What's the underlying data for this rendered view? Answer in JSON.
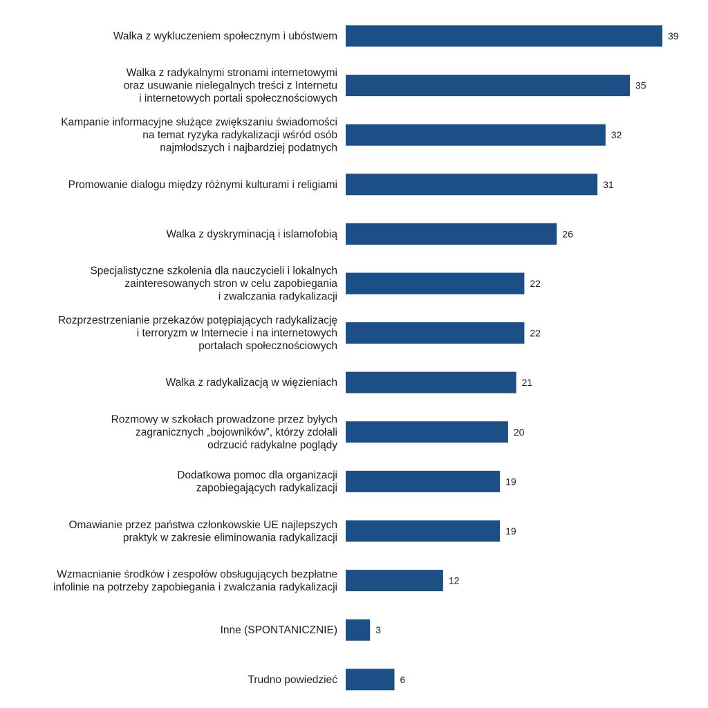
{
  "chart_data": {
    "type": "bar",
    "orientation": "horizontal",
    "bar_color": "#1c4f85",
    "xlim": [
      0,
      39
    ],
    "grid": false,
    "legend": "none",
    "title": "",
    "xlabel": "",
    "ylabel": "",
    "categories": [
      [
        "Walka z wykluczeniem społecznym i ubóstwem"
      ],
      [
        "Walka z radykalnymi stronami internetowymi",
        "oraz usuwanie nielegalnych treści z Internetu",
        "i internetowych portali społecznościowych"
      ],
      [
        "Kampanie informacyjne służące zwiększaniu świadomości",
        "na temat ryzyka radykalizacji wśród osób",
        "najmłodszych i najbardziej podatnych"
      ],
      [
        "Promowanie dialogu między różnymi kulturami i religiami"
      ],
      [
        "Walka z dyskryminacją i islamofobią"
      ],
      [
        "Specjalistyczne szkolenia dla nauczycieli i lokalnych",
        "zainteresowanych stron w celu zapobiegania",
        "i zwalczania radykalizacji"
      ],
      [
        "Rozprzestrzenianie przekazów potępiających radykalizację",
        "i terroryzm w Internecie i na internetowych",
        "portalach społecznościowych"
      ],
      [
        "Walka z radykalizacją w więzieniach"
      ],
      [
        "Rozmowy w szkołach prowadzone przez byłych",
        "zagranicznych „bojowników”, którzy zdołali",
        "odrzucić radykalne poglądy"
      ],
      [
        "Dodatkowa pomoc dla organizacji",
        "zapobiegających radykalizacji"
      ],
      [
        "Omawianie przez państwa członkowskie UE najlepszych",
        "praktyk w zakresie eliminowania radykalizacji"
      ],
      [
        "Wzmacnianie środków i zespołów obsługujących bezpłatne",
        "infolinie na potrzeby zapobiegania i zwalczania radykalizacji"
      ],
      [
        "Inne (SPONTANICZNIE)"
      ],
      [
        "Trudno powiedzieć"
      ]
    ],
    "values": [
      39,
      35,
      32,
      31,
      26,
      22,
      22,
      21,
      20,
      19,
      19,
      12,
      3,
      6
    ]
  }
}
